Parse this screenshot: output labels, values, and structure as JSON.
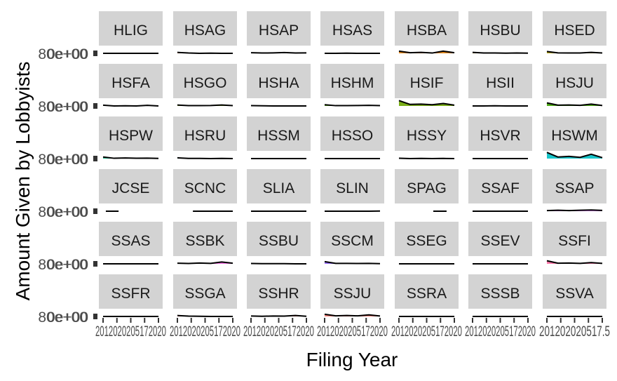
{
  "chart_data": {
    "type": "area",
    "xlabel": "Filing Year",
    "ylabel": "Amount Given by Lobbyists",
    "x_tick_labels": [
      "2010.0",
      "2012.5",
      "2015.0",
      "2017.5",
      "2020.0"
    ],
    "x_tick_text_overlapped": "2012020205172020",
    "x_tick_text_last_column": "201202020517.5",
    "y_tick_label": "0e+00",
    "y_tick_text_overlapped": "80e+00",
    "xlim": [
      2010,
      2020
    ],
    "ylim": [
      0,
      1
    ],
    "facet_rows": 6,
    "facet_cols": 7,
    "panels": [
      {
        "name": "HLIG",
        "color": "#F8766D",
        "values": [
          0.0,
          0.0,
          0.0,
          0.0,
          0.0,
          0.0
        ]
      },
      {
        "name": "HSAG",
        "color": "#F17C2B",
        "values": [
          0.06,
          0.02,
          0.0,
          0.01,
          0.0,
          0.0
        ]
      },
      {
        "name": "HSAP",
        "color": "#E58700",
        "values": [
          0.04,
          0.02,
          0.03,
          0.05,
          0.02,
          0.03
        ]
      },
      {
        "name": "HSAS",
        "color": "#D89000",
        "values": [
          0.0,
          0.0,
          0.01,
          0.0,
          0.0,
          0.0
        ]
      },
      {
        "name": "HSBA",
        "color": "#E07A00",
        "values": [
          0.14,
          0.04,
          0.06,
          0.02,
          0.14,
          0.04
        ]
      },
      {
        "name": "HSBU",
        "color": "#C49A00",
        "values": [
          0.06,
          0.02,
          0.02,
          0.01,
          0.02,
          0.01
        ]
      },
      {
        "name": "HSED",
        "color": "#B0A000",
        "values": [
          0.12,
          0.03,
          0.02,
          0.02,
          0.06,
          0.02
        ]
      },
      {
        "name": "HSFA",
        "color": "#99A800",
        "values": [
          0.05,
          0.0,
          0.01,
          0.0,
          0.04,
          0.0
        ]
      },
      {
        "name": "HSGO",
        "color": "#7CAE00",
        "values": [
          0.06,
          0.02,
          0.02,
          0.03,
          0.06,
          0.02
        ]
      },
      {
        "name": "HSHA",
        "color": "#53B400",
        "values": [
          0.02,
          0.01,
          0.0,
          0.0,
          0.0,
          0.0
        ]
      },
      {
        "name": "HSHM",
        "color": "#4CA800",
        "values": [
          0.08,
          0.02,
          0.02,
          0.03,
          0.04,
          0.02
        ]
      },
      {
        "name": "HSIF",
        "color": "#6BA500",
        "values": [
          0.35,
          0.1,
          0.12,
          0.08,
          0.16,
          0.05
        ]
      },
      {
        "name": "HSII",
        "color": "#00BC56",
        "values": [
          0.0,
          0.0,
          0.01,
          0.0,
          0.0,
          0.0
        ]
      },
      {
        "name": "HSJU",
        "color": "#3CA300",
        "values": [
          0.2,
          0.05,
          0.06,
          0.04,
          0.12,
          0.03
        ]
      },
      {
        "name": "HSPW",
        "color": "#00C08B",
        "values": [
          0.1,
          0.02,
          0.04,
          0.02,
          0.03,
          0.01
        ]
      },
      {
        "name": "HSRU",
        "color": "#00C1A3",
        "values": [
          0.05,
          0.01,
          0.01,
          0.0,
          0.01,
          0.0
        ]
      },
      {
        "name": "HSSM",
        "color": "#00BFBB",
        "values": [
          0.0,
          0.0,
          0.0,
          0.0,
          0.0,
          0.0
        ]
      },
      {
        "name": "HSSO",
        "color": "#00BCD0",
        "values": [
          0.0,
          0.0,
          0.0,
          0.0,
          0.0,
          0.0
        ]
      },
      {
        "name": "HSSY",
        "color": "#00B8E3",
        "values": [
          0.02,
          0.0,
          0.01,
          0.0,
          0.01,
          0.0
        ]
      },
      {
        "name": "HSVR",
        "color": "#00B0F6",
        "values": [
          0.0,
          0.0,
          0.0,
          0.0,
          0.0,
          0.0
        ]
      },
      {
        "name": "HSWM",
        "color": "#00BFC4",
        "values": [
          0.4,
          0.1,
          0.14,
          0.08,
          0.28,
          0.06
        ]
      },
      {
        "name": "JCSE",
        "color": "#35A2FF",
        "values": [
          0.0,
          0.0
        ],
        "xrange": [
          2010.5,
          2012.8
        ]
      },
      {
        "name": "SCNC",
        "color": "#619CFF",
        "values": [
          0.0,
          0.0,
          0.0,
          0.0
        ],
        "xrange": [
          2012.8,
          2020
        ]
      },
      {
        "name": "SLIA",
        "color": "#7C97FF",
        "values": [
          0.0,
          0.0,
          0.0,
          0.0,
          0.0,
          0.0
        ]
      },
      {
        "name": "SLIN",
        "color": "#9590FF",
        "values": [
          0.0,
          0.0,
          0.0,
          0.0,
          0.0,
          0.01
        ]
      },
      {
        "name": "SPAG",
        "color": "#AC88FF",
        "values": [
          0.0,
          0.0
        ],
        "xrange": [
          2016.2,
          2018.6
        ]
      },
      {
        "name": "SSAF",
        "color": "#C77CFF",
        "values": [
          0.0,
          0.0,
          0.0,
          0.0,
          0.0,
          0.0
        ]
      },
      {
        "name": "SSAP",
        "color": "#DC71FA",
        "values": [
          0.04,
          0.06,
          0.04,
          0.06,
          0.08,
          0.05
        ]
      },
      {
        "name": "SSAS",
        "color": "#E76BF3",
        "values": [
          0.0,
          0.0,
          0.0,
          0.0,
          0.0,
          0.0
        ]
      },
      {
        "name": "SSBK",
        "color": "#F564E3",
        "values": [
          0.04,
          0.02,
          0.05,
          0.03,
          0.12,
          0.04
        ]
      },
      {
        "name": "SSBU",
        "color": "#FF61C3",
        "values": [
          0.02,
          0.01,
          0.01,
          0.01,
          0.0,
          0.0
        ]
      },
      {
        "name": "SSCM",
        "color": "#8F60FF",
        "values": [
          0.14,
          0.03,
          0.03,
          0.02,
          0.03,
          0.01
        ]
      },
      {
        "name": "SSEG",
        "color": "#FF63B6",
        "values": [
          0.0,
          0.0,
          0.0,
          0.0,
          0.0,
          0.0
        ]
      },
      {
        "name": "SSEV",
        "color": "#FF64B0",
        "values": [
          0.0,
          0.0,
          0.0,
          0.0,
          0.0,
          0.0
        ]
      },
      {
        "name": "SSFI",
        "color": "#FF68A1",
        "values": [
          0.2,
          0.04,
          0.05,
          0.03,
          0.08,
          0.03
        ]
      },
      {
        "name": "SSFR",
        "color": "#FF6C91",
        "values": [
          0.0,
          0.0,
          0.0,
          0.0,
          0.0,
          0.0
        ]
      },
      {
        "name": "SSGA",
        "color": "#FC717F",
        "values": [
          0.06,
          0.02,
          0.01,
          0.0,
          0.0,
          0.0
        ]
      },
      {
        "name": "SSHR",
        "color": "#F8766D",
        "values": [
          0.03,
          0.01,
          0.03,
          0.02,
          0.06,
          0.01
        ]
      },
      {
        "name": "SSJU",
        "color": "#F8766D",
        "values": [
          0.14,
          0.04,
          0.06,
          0.04,
          0.1,
          0.03
        ]
      },
      {
        "name": "SSRA",
        "color": "#F8766D",
        "values": [
          0.0,
          0.0,
          0.0,
          0.0,
          0.0,
          0.0
        ]
      },
      {
        "name": "SSSB",
        "color": "#F8766D",
        "values": [
          0.0,
          0.0,
          0.0,
          0.0,
          0.0,
          0.0
        ]
      },
      {
        "name": "SSVA",
        "color": "#F8766D",
        "values": [
          0.0,
          0.0,
          0.0,
          0.0,
          0.0,
          0.0
        ]
      }
    ],
    "colors": {
      "strip_background": "#D3D3D3",
      "strip_text": "#1A1A1A",
      "line": "#000000",
      "tick_text": "#4D4D4D"
    }
  }
}
